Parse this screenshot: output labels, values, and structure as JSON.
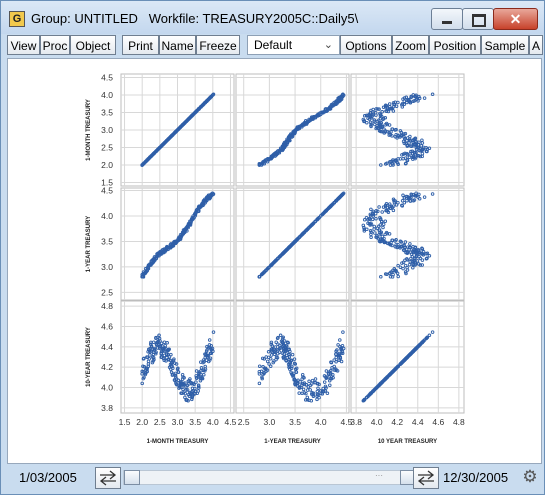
{
  "window": {
    "app_icon": "G",
    "title": "Group: UNTITLED   Workfile: TREASURY2005C::Daily5\\",
    "close_glyph": "✕"
  },
  "toolbar": {
    "buttons": [
      "View",
      "Proc",
      "Object",
      "Print",
      "Name",
      "Freeze",
      "Options",
      "Zoom",
      "Position",
      "Sample",
      "A"
    ],
    "dropdown_value": "Default"
  },
  "status": {
    "start_date": "1/03/2005",
    "end_date": "12/30/2005",
    "scroll_dots": "···"
  },
  "chart_data": {
    "type": "scatter",
    "variables": [
      "1-MONTH TREASURY",
      "1-YEAR TREASURY",
      "10-YEAR TREASURY"
    ],
    "row_labels": [
      "1-MONTH TREASURY",
      "1-YEAR TREASURY",
      "10-YEAR TREASURY"
    ],
    "col_labels": [
      "1-MONTH TREASURY",
      "1-YEAR TREASURY",
      "10 YEAR TREASURY"
    ],
    "row_ticks": [
      [
        "4.5",
        "4.0",
        "3.5",
        "3.0",
        "2.5",
        "2.0",
        "1.5"
      ],
      [
        "4.5",
        "4.0",
        "3.5",
        "3.0",
        "2.5"
      ],
      [
        "4.8",
        "4.6",
        "4.4",
        "4.2",
        "4.0",
        "3.8"
      ]
    ],
    "col_ticks": [
      [
        "1.5",
        "2.0",
        "2.5",
        "3.0",
        "3.5",
        "4.0",
        "4.5"
      ],
      [
        "2.5",
        "3.0",
        "3.5",
        "4.0",
        "4.5"
      ],
      [
        "3.8",
        "4.0",
        "4.2",
        "4.4",
        "4.6",
        "4.8"
      ]
    ],
    "ranges": [
      [
        1.4,
        4.6
      ],
      [
        2.35,
        4.55
      ],
      [
        3.75,
        4.85
      ]
    ],
    "marker_color": "#2f5fa8",
    "grid": true,
    "n_points": 250
  }
}
